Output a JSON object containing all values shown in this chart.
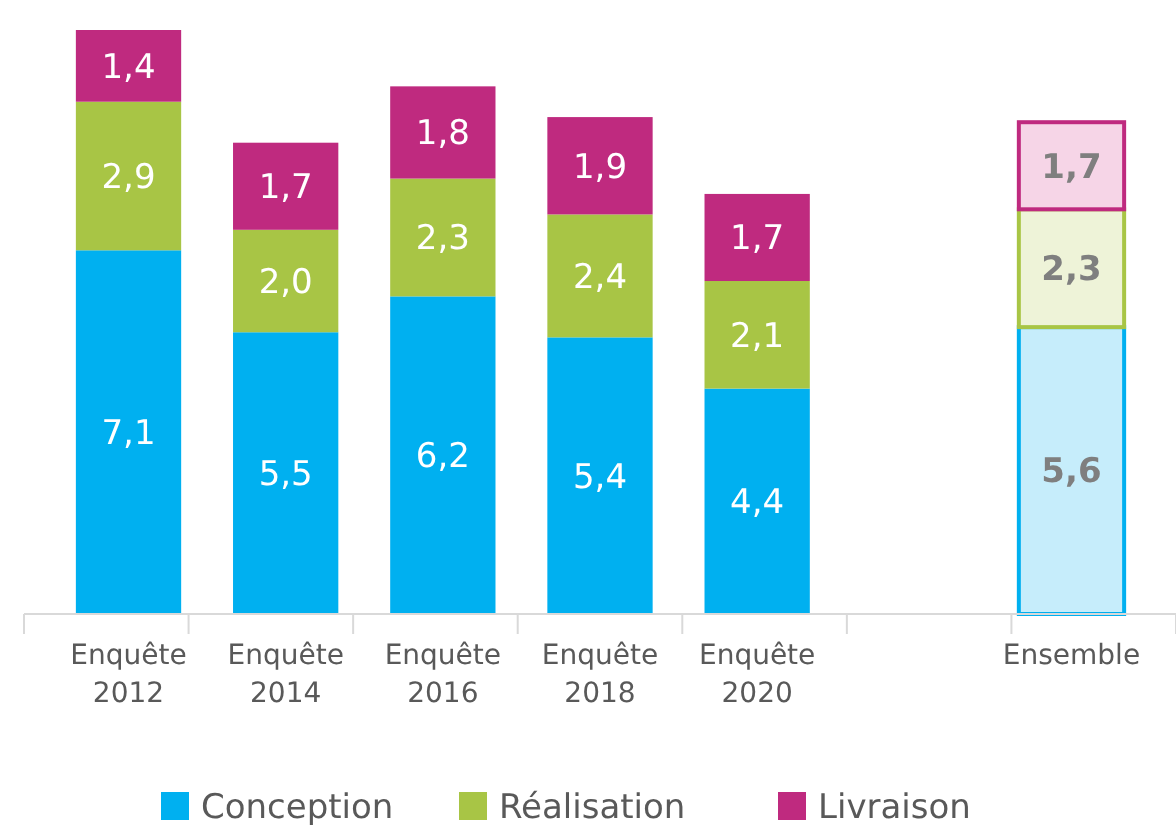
{
  "chart_data": {
    "type": "bar",
    "stacked": true,
    "categories": [
      "Enquête\n2012",
      "Enquête\n2014",
      "Enquête\n2016",
      "Enquête\n2018",
      "Enquête\n2020",
      null,
      "Ensemble"
    ],
    "series": [
      {
        "name": "Conception",
        "color": "#00b0f0",
        "colors": [
          "#00b0f0",
          "#00b0f0",
          "#00b0f0",
          "#00b0f0",
          "#00b0f0",
          null,
          "#c6edfb"
        ],
        "values": [
          7.1,
          5.5,
          6.2,
          5.4,
          4.4,
          null,
          5.6
        ],
        "value_labels": [
          "7,1",
          "5,5",
          "6,2",
          "5,4",
          "4,4",
          null,
          "5,6"
        ]
      },
      {
        "name": "Réalisation",
        "color": "#a8c545",
        "colors": [
          "#a8c545",
          "#a8c545",
          "#a8c545",
          "#a8c545",
          "#a8c545",
          null,
          "#eef3d8"
        ],
        "values": [
          2.9,
          2.0,
          2.3,
          2.4,
          2.1,
          null,
          2.3
        ],
        "value_labels": [
          "2,9",
          "2,0",
          "2,3",
          "2,4",
          "2,1",
          null,
          "2,3"
        ]
      },
      {
        "name": "Livraison",
        "color": "#bf2a7f",
        "colors": [
          "#bf2a7f",
          "#bf2a7f",
          "#bf2a7f",
          "#bf2a7f",
          "#bf2a7f",
          null,
          "#f6d5e7"
        ],
        "values": [
          1.4,
          1.7,
          1.8,
          1.9,
          1.7,
          null,
          1.7
        ],
        "value_labels": [
          "1,4",
          "1,7",
          "1,8",
          "1,9",
          "1,7",
          null,
          "1,7"
        ]
      }
    ],
    "legend": "bottom"
  }
}
